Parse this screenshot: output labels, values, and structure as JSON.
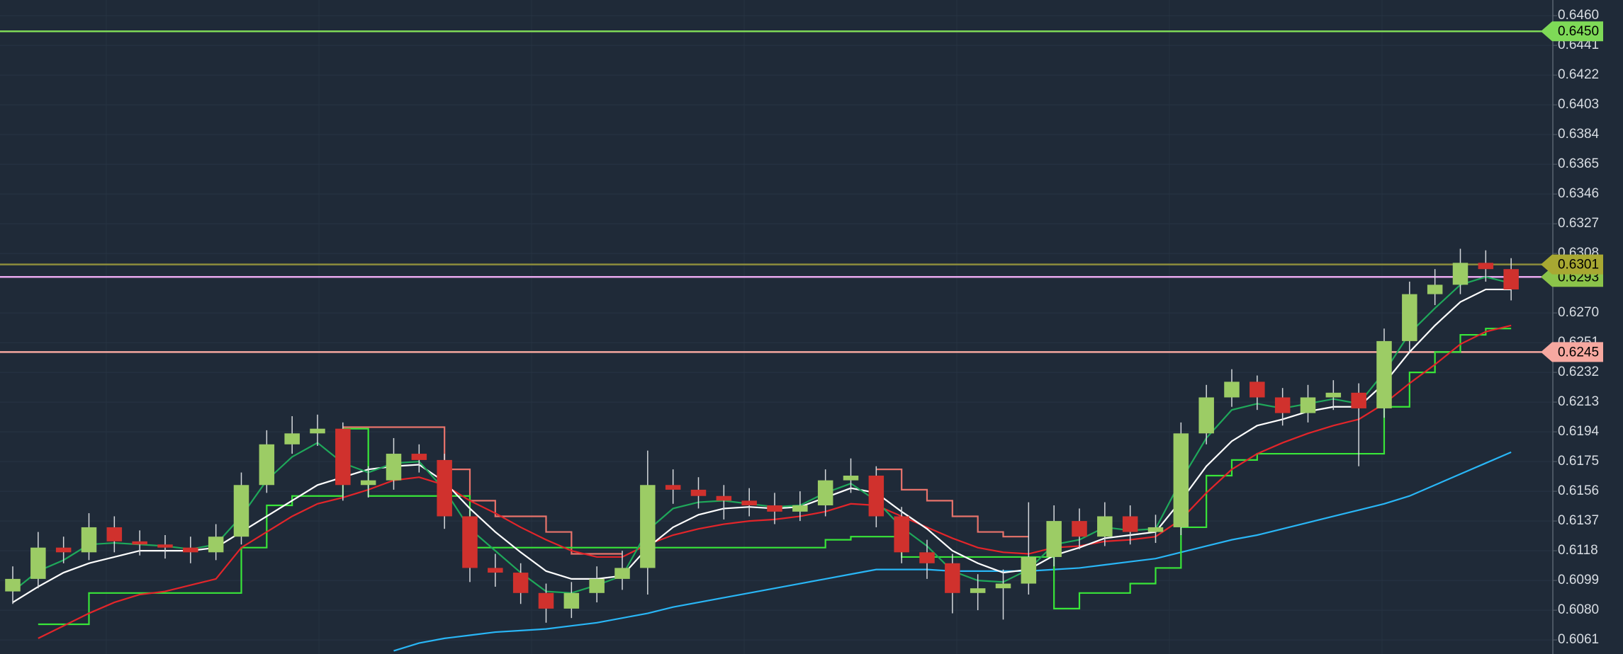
{
  "chart_data": {
    "type": "candlestick",
    "background": "#1f2a38",
    "grid": true,
    "ylim": [
      0.6052,
      0.647
    ],
    "yticks": [
      {
        "value": 0.646,
        "label": "0.6460"
      },
      0.6441,
      0.6422,
      0.6403,
      0.6384,
      0.6365,
      0.6346,
      0.6327,
      0.6308,
      {
        "value": 0.627,
        "label": "0.6270"
      },
      0.6251,
      0.6232,
      0.6213,
      0.6194,
      0.6175,
      0.6156,
      0.6137,
      0.6118,
      0.6099,
      {
        "value": 0.608,
        "label": "0.6080"
      },
      0.6061
    ],
    "up_color": "#9ccc65",
    "down_color": "#d0312d",
    "wick_color": "#d5d8dc",
    "open": [
      0.6092,
      0.61,
      0.612,
      0.6117,
      0.6133,
      0.6124,
      0.6122,
      0.612,
      0.6117,
      0.6127,
      0.616,
      0.6186,
      0.6193,
      0.6196,
      0.616,
      0.6163,
      0.618,
      0.6176,
      0.614,
      0.6107,
      0.6104,
      0.6091,
      0.6081,
      0.6091,
      0.61,
      0.6107,
      0.616,
      0.6157,
      0.6153,
      0.615,
      0.6147,
      0.6143,
      0.6147,
      0.6163,
      0.6166,
      0.614,
      0.6117,
      0.611,
      0.6091,
      0.6094,
      0.6097,
      0.6114,
      0.6137,
      0.6127,
      0.614,
      0.613,
      0.6133,
      0.6193,
      0.6216,
      0.6226,
      0.6216,
      0.6206,
      0.6216,
      0.6219,
      0.6209,
      0.6252,
      0.6282,
      0.6288,
      0.6302,
      0.6298
    ],
    "high": [
      0.6108,
      0.613,
      0.6127,
      0.6142,
      0.614,
      0.6131,
      0.6128,
      0.6127,
      0.6135,
      0.6168,
      0.6195,
      0.6204,
      0.6205,
      0.62,
      0.6172,
      0.619,
      0.6186,
      0.618,
      0.6145,
      0.6116,
      0.611,
      0.6097,
      0.6098,
      0.6108,
      0.6118,
      0.6182,
      0.617,
      0.6165,
      0.616,
      0.6158,
      0.6155,
      0.6156,
      0.617,
      0.6177,
      0.6172,
      0.6146,
      0.6125,
      0.6116,
      0.6103,
      0.6106,
      0.6149,
      0.6147,
      0.6145,
      0.6149,
      0.6147,
      0.6141,
      0.62,
      0.6224,
      0.6234,
      0.623,
      0.6222,
      0.6224,
      0.6227,
      0.6225,
      0.626,
      0.629,
      0.6298,
      0.6311,
      0.631,
      0.6305
    ],
    "low": [
      0.6084,
      0.6094,
      0.611,
      0.6112,
      0.6117,
      0.6115,
      0.6113,
      0.611,
      0.6112,
      0.6122,
      0.6155,
      0.618,
      0.6185,
      0.615,
      0.6152,
      0.6157,
      0.6168,
      0.6132,
      0.6098,
      0.6095,
      0.6084,
      0.6072,
      0.6075,
      0.6085,
      0.6093,
      0.609,
      0.6148,
      0.6145,
      0.6138,
      0.614,
      0.6135,
      0.6137,
      0.614,
      0.6155,
      0.6133,
      0.611,
      0.61,
      0.6078,
      0.608,
      0.6074,
      0.609,
      0.6108,
      0.6119,
      0.6121,
      0.6122,
      0.6123,
      0.6128,
      0.6186,
      0.621,
      0.6208,
      0.6198,
      0.62,
      0.6208,
      0.6172,
      0.6203,
      0.6245,
      0.6275,
      0.6282,
      0.629,
      0.6278
    ],
    "close": [
      0.61,
      0.612,
      0.6117,
      0.6133,
      0.6124,
      0.6122,
      0.612,
      0.6117,
      0.6127,
      0.616,
      0.6186,
      0.6193,
      0.6196,
      0.616,
      0.6163,
      0.618,
      0.6176,
      0.614,
      0.6107,
      0.6104,
      0.6091,
      0.6081,
      0.6091,
      0.61,
      0.6107,
      0.616,
      0.6157,
      0.6153,
      0.615,
      0.6147,
      0.6143,
      0.6147,
      0.6163,
      0.6166,
      0.614,
      0.6117,
      0.611,
      0.6091,
      0.6094,
      0.6097,
      0.6114,
      0.6137,
      0.6127,
      0.614,
      0.613,
      0.6133,
      0.6193,
      0.6216,
      0.6226,
      0.6216,
      0.6206,
      0.6216,
      0.6219,
      0.6209,
      0.6252,
      0.6282,
      0.6288,
      0.6302,
      0.6298,
      0.6285
    ],
    "series": [
      {
        "color": "#29b6f6",
        "step": false,
        "values": [
          null,
          null,
          null,
          null,
          null,
          null,
          null,
          null,
          null,
          null,
          null,
          null,
          null,
          null,
          null,
          0.6054,
          0.6059,
          0.6062,
          0.6064,
          0.6066,
          0.6067,
          0.6068,
          0.607,
          0.6072,
          0.6075,
          0.6078,
          0.6082,
          0.6085,
          0.6088,
          0.6091,
          0.6094,
          0.6097,
          0.61,
          0.6103,
          0.6106,
          0.6106,
          0.6106,
          0.6105,
          0.6105,
          0.6105,
          0.6105,
          0.6106,
          0.6107,
          0.6109,
          0.6111,
          0.6113,
          0.6117,
          0.6121,
          0.6125,
          0.6128,
          0.6132,
          0.6136,
          0.614,
          0.6144,
          0.6148,
          0.6153,
          0.616,
          0.6167,
          0.6174,
          0.6181
        ]
      },
      {
        "color": "#e8736b",
        "step": true,
        "values": [
          null,
          null,
          null,
          null,
          null,
          null,
          null,
          null,
          null,
          null,
          null,
          null,
          null,
          0.6197,
          0.6197,
          0.6197,
          0.6197,
          0.617,
          0.615,
          0.614,
          0.614,
          0.613,
          0.6116,
          0.6116,
          0.6116,
          null,
          null,
          null,
          null,
          null,
          null,
          null,
          null,
          null,
          0.617,
          0.6157,
          0.615,
          0.614,
          0.613,
          0.6127,
          0.6127,
          null,
          null,
          null,
          null,
          null,
          null,
          null,
          null,
          null,
          null,
          null,
          null,
          null,
          null,
          null,
          null,
          null,
          null,
          null
        ]
      },
      {
        "color": "#39e639",
        "step": true,
        "values": [
          null,
          0.6071,
          0.6071,
          0.6091,
          0.6091,
          0.6091,
          0.6091,
          0.6091,
          0.6091,
          0.612,
          0.6147,
          0.6153,
          0.6153,
          0.6196,
          0.6153,
          0.6153,
          0.6153,
          0.6153,
          0.612,
          0.612,
          0.612,
          0.612,
          0.612,
          0.612,
          0.612,
          0.612,
          0.612,
          0.612,
          0.612,
          0.612,
          0.612,
          0.612,
          0.6125,
          0.6127,
          0.6127,
          0.6114,
          0.6114,
          0.6114,
          0.6114,
          0.6114,
          0.6114,
          0.6081,
          0.6091,
          0.6091,
          0.6097,
          0.6107,
          0.6133,
          0.6166,
          0.6176,
          0.618,
          0.618,
          0.618,
          0.618,
          0.618,
          0.621,
          0.6232,
          0.6245,
          0.6256,
          0.626,
          0.626
        ]
      },
      {
        "color": "#e3252a",
        "step": false,
        "values": [
          null,
          0.6062,
          0.607,
          0.6078,
          0.6085,
          0.609,
          0.6092,
          0.6096,
          0.61,
          0.612,
          0.613,
          0.614,
          0.6148,
          0.6152,
          0.6157,
          0.6163,
          0.6165,
          0.616,
          0.615,
          0.6142,
          0.6133,
          0.6125,
          0.6118,
          0.6114,
          0.6114,
          0.6122,
          0.6128,
          0.6132,
          0.6135,
          0.6137,
          0.6138,
          0.614,
          0.6143,
          0.6148,
          0.6147,
          0.614,
          0.6133,
          0.6126,
          0.612,
          0.6117,
          0.6116,
          0.612,
          0.6121,
          0.6124,
          0.6125,
          0.6127,
          0.6138,
          0.6155,
          0.617,
          0.618,
          0.6187,
          0.6193,
          0.6198,
          0.6202,
          0.6212,
          0.6225,
          0.6237,
          0.625,
          0.6258,
          0.6262
        ]
      },
      {
        "color": "#ffffff",
        "step": false,
        "values": [
          0.6085,
          0.6095,
          0.6104,
          0.611,
          0.6114,
          0.6118,
          0.6118,
          0.6118,
          0.612,
          0.613,
          0.614,
          0.615,
          0.616,
          0.6165,
          0.617,
          0.6172,
          0.6173,
          0.6162,
          0.6145,
          0.613,
          0.6117,
          0.6105,
          0.61,
          0.61,
          0.6102,
          0.612,
          0.6133,
          0.6141,
          0.6145,
          0.6146,
          0.6145,
          0.6146,
          0.6152,
          0.6158,
          0.6155,
          0.6143,
          0.6132,
          0.6118,
          0.611,
          0.6104,
          0.6106,
          0.6115,
          0.612,
          0.6126,
          0.6128,
          0.613,
          0.615,
          0.6172,
          0.6188,
          0.6198,
          0.6202,
          0.6207,
          0.621,
          0.621,
          0.6225,
          0.6245,
          0.6262,
          0.6277,
          0.6285,
          0.6285
        ]
      },
      {
        "color": "#1fa85a",
        "step": false,
        "values": [
          0.6092,
          0.6105,
          0.6112,
          0.6122,
          0.6123,
          0.6122,
          0.6121,
          0.6119,
          0.6122,
          0.614,
          0.6163,
          0.6178,
          0.6187,
          0.6174,
          0.6168,
          0.6174,
          0.6175,
          0.6157,
          0.6132,
          0.6118,
          0.6104,
          0.6092,
          0.6091,
          0.6096,
          0.6102,
          0.6131,
          0.6145,
          0.6149,
          0.615,
          0.6148,
          0.6146,
          0.6147,
          0.6155,
          0.6161,
          0.615,
          0.6133,
          0.6121,
          0.6105,
          0.6099,
          0.6098,
          0.6106,
          0.6122,
          0.6125,
          0.6133,
          0.6131,
          0.6132,
          0.6163,
          0.619,
          0.6208,
          0.6212,
          0.6209,
          0.6212,
          0.6215,
          0.6212,
          0.6232,
          0.6257,
          0.6273,
          0.6288,
          0.6293,
          0.6289
        ]
      }
    ],
    "levels": [
      {
        "value": 0.645,
        "label": "0.6450",
        "color": "#7ed957",
        "label_color": "#7ed957"
      },
      {
        "value": 0.6245,
        "label": "0.6245",
        "color": "#f6a8a0",
        "label_color": "#f6a8a0"
      },
      {
        "value": 0.6293,
        "label": "0.6293",
        "color": "#e8a8ee",
        "label_color": "#8bc34a"
      },
      {
        "value": 0.6301,
        "label": "0.6301",
        "color": "#8c8c3c",
        "label_color": "#a8a832"
      }
    ]
  }
}
